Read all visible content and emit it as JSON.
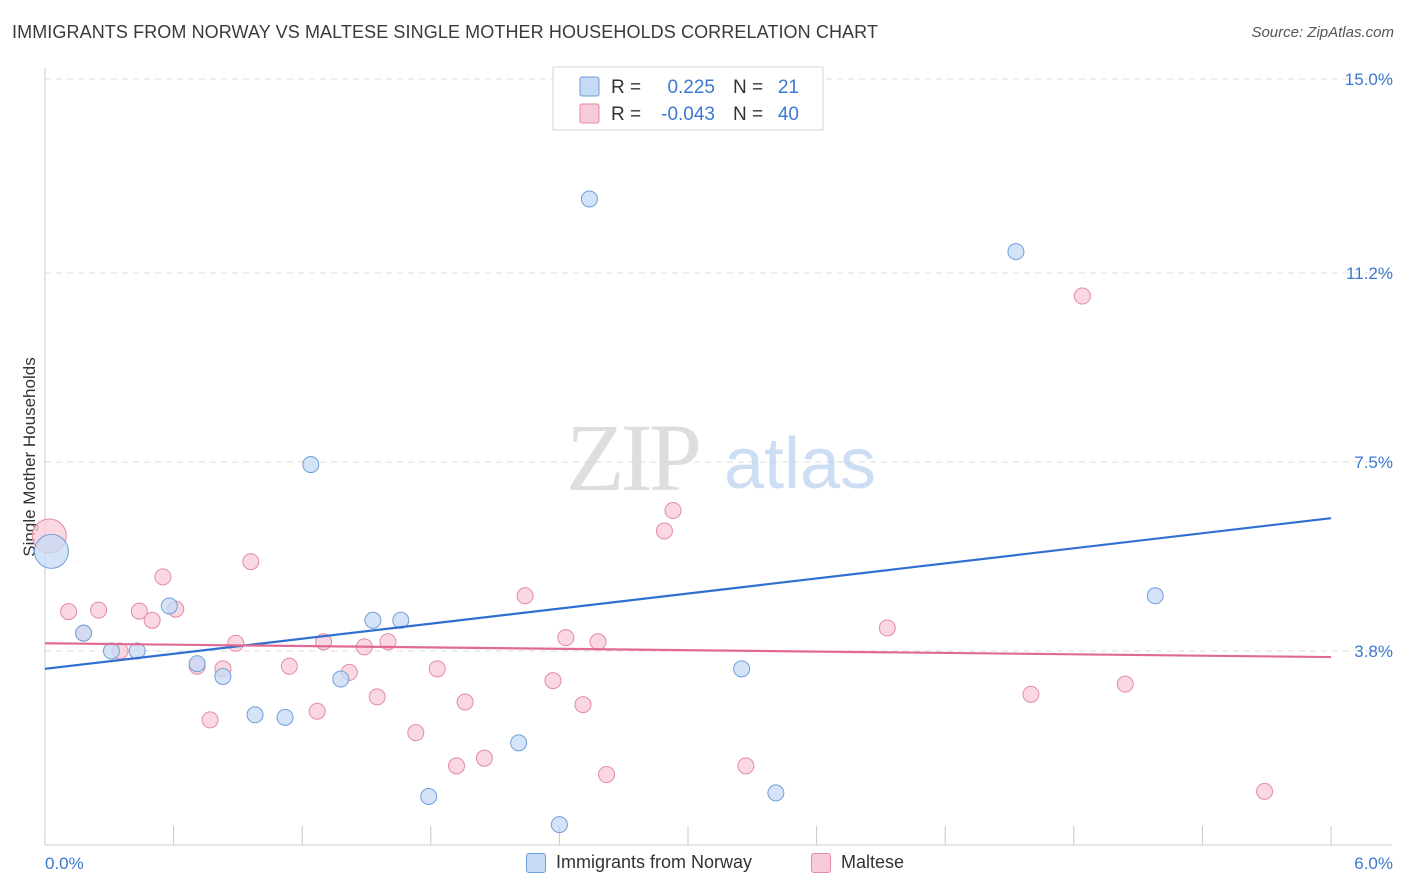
{
  "header": {
    "title": "IMMIGRANTS FROM NORWAY VS MALTESE SINGLE MOTHER HOUSEHOLDS CORRELATION CHART",
    "source": "Source: ZipAtlas.com"
  },
  "watermark": {
    "zip": "ZIP",
    "atlas": "atlas"
  },
  "colors": {
    "blue_fill": "#c5daf5",
    "blue_stroke": "#6f9fd8",
    "blue_line": "#2f6fd0",
    "pink_fill": "#f8cbd8",
    "pink_stroke": "#e48aa6",
    "pink_line": "#e06a94",
    "tick_label": "#3b78d0",
    "grid": "#dddddd"
  },
  "stats_legend": [
    {
      "r_label": "R =",
      "r_value": "0.225",
      "n_label": "N =",
      "n_value": "21"
    },
    {
      "r_label": "R =",
      "r_value": "-0.043",
      "n_label": "N =",
      "n_value": "40"
    }
  ],
  "chart_data": {
    "type": "scatter",
    "title": "IMMIGRANTS FROM NORWAY VS MALTESE SINGLE MOTHER HOUSEHOLDS CORRELATION CHART",
    "xlabel": "",
    "ylabel": "Single Mother Households",
    "xlim": [
      0.0,
      6.0
    ],
    "ylim": [
      0.0,
      15.0
    ],
    "x_tick_labels": [
      "0.0%",
      "6.0%"
    ],
    "y_ticks": [
      3.8,
      7.5,
      11.2,
      15.0
    ],
    "y_tick_labels": [
      "3.8%",
      "7.5%",
      "11.2%",
      "15.0%"
    ],
    "grid": true,
    "legend_position": "bottom",
    "series": [
      {
        "name": "Immigrants from Norway",
        "color": "#6f9fd8",
        "trend": {
          "x": [
            0.0,
            6.0
          ],
          "y": [
            3.45,
            6.4
          ]
        },
        "points": [
          {
            "x": 0.03,
            "y": 5.75,
            "big": true
          },
          {
            "x": 0.18,
            "y": 4.15
          },
          {
            "x": 0.31,
            "y": 3.8
          },
          {
            "x": 0.43,
            "y": 3.8
          },
          {
            "x": 0.58,
            "y": 4.68
          },
          {
            "x": 0.71,
            "y": 3.55
          },
          {
            "x": 0.83,
            "y": 3.3
          },
          {
            "x": 0.98,
            "y": 2.55
          },
          {
            "x": 1.12,
            "y": 2.5
          },
          {
            "x": 1.24,
            "y": 7.45
          },
          {
            "x": 1.38,
            "y": 3.25
          },
          {
            "x": 1.53,
            "y": 4.4
          },
          {
            "x": 1.66,
            "y": 4.4
          },
          {
            "x": 1.79,
            "y": 0.95
          },
          {
            "x": 2.21,
            "y": 2.0
          },
          {
            "x": 2.4,
            "y": 0.4
          },
          {
            "x": 2.54,
            "y": 12.65
          },
          {
            "x": 3.25,
            "y": 3.45
          },
          {
            "x": 3.41,
            "y": 1.02
          },
          {
            "x": 4.53,
            "y": 11.62
          },
          {
            "x": 5.18,
            "y": 4.88
          }
        ]
      },
      {
        "name": "Maltese",
        "color": "#e48aa6",
        "trend": {
          "x": [
            0.0,
            6.0
          ],
          "y": [
            3.95,
            3.68
          ]
        },
        "points": [
          {
            "x": 0.02,
            "y": 6.05,
            "big": true
          },
          {
            "x": 0.11,
            "y": 4.57
          },
          {
            "x": 0.18,
            "y": 4.15
          },
          {
            "x": 0.25,
            "y": 4.6
          },
          {
            "x": 0.35,
            "y": 3.8
          },
          {
            "x": 0.44,
            "y": 4.58
          },
          {
            "x": 0.5,
            "y": 4.4
          },
          {
            "x": 0.55,
            "y": 5.25
          },
          {
            "x": 0.61,
            "y": 4.62
          },
          {
            "x": 0.71,
            "y": 3.5
          },
          {
            "x": 0.77,
            "y": 2.45
          },
          {
            "x": 0.83,
            "y": 3.45
          },
          {
            "x": 0.89,
            "y": 3.95
          },
          {
            "x": 0.96,
            "y": 5.55
          },
          {
            "x": 1.14,
            "y": 3.5
          },
          {
            "x": 1.27,
            "y": 2.62
          },
          {
            "x": 1.3,
            "y": 3.98
          },
          {
            "x": 1.42,
            "y": 3.38
          },
          {
            "x": 1.49,
            "y": 3.88
          },
          {
            "x": 1.55,
            "y": 2.9
          },
          {
            "x": 1.6,
            "y": 3.98
          },
          {
            "x": 1.73,
            "y": 2.2
          },
          {
            "x": 1.83,
            "y": 3.45
          },
          {
            "x": 1.92,
            "y": 1.55
          },
          {
            "x": 1.96,
            "y": 2.8
          },
          {
            "x": 2.05,
            "y": 1.7
          },
          {
            "x": 2.24,
            "y": 4.88
          },
          {
            "x": 2.37,
            "y": 3.22
          },
          {
            "x": 2.43,
            "y": 4.06
          },
          {
            "x": 2.51,
            "y": 2.75
          },
          {
            "x": 2.58,
            "y": 3.98
          },
          {
            "x": 2.62,
            "y": 1.38
          },
          {
            "x": 2.89,
            "y": 6.15
          },
          {
            "x": 2.93,
            "y": 6.55
          },
          {
            "x": 3.27,
            "y": 1.55
          },
          {
            "x": 3.93,
            "y": 4.25
          },
          {
            "x": 4.6,
            "y": 2.95
          },
          {
            "x": 4.84,
            "y": 10.75
          },
          {
            "x": 5.04,
            "y": 3.15
          },
          {
            "x": 5.69,
            "y": 1.05
          }
        ]
      }
    ]
  }
}
